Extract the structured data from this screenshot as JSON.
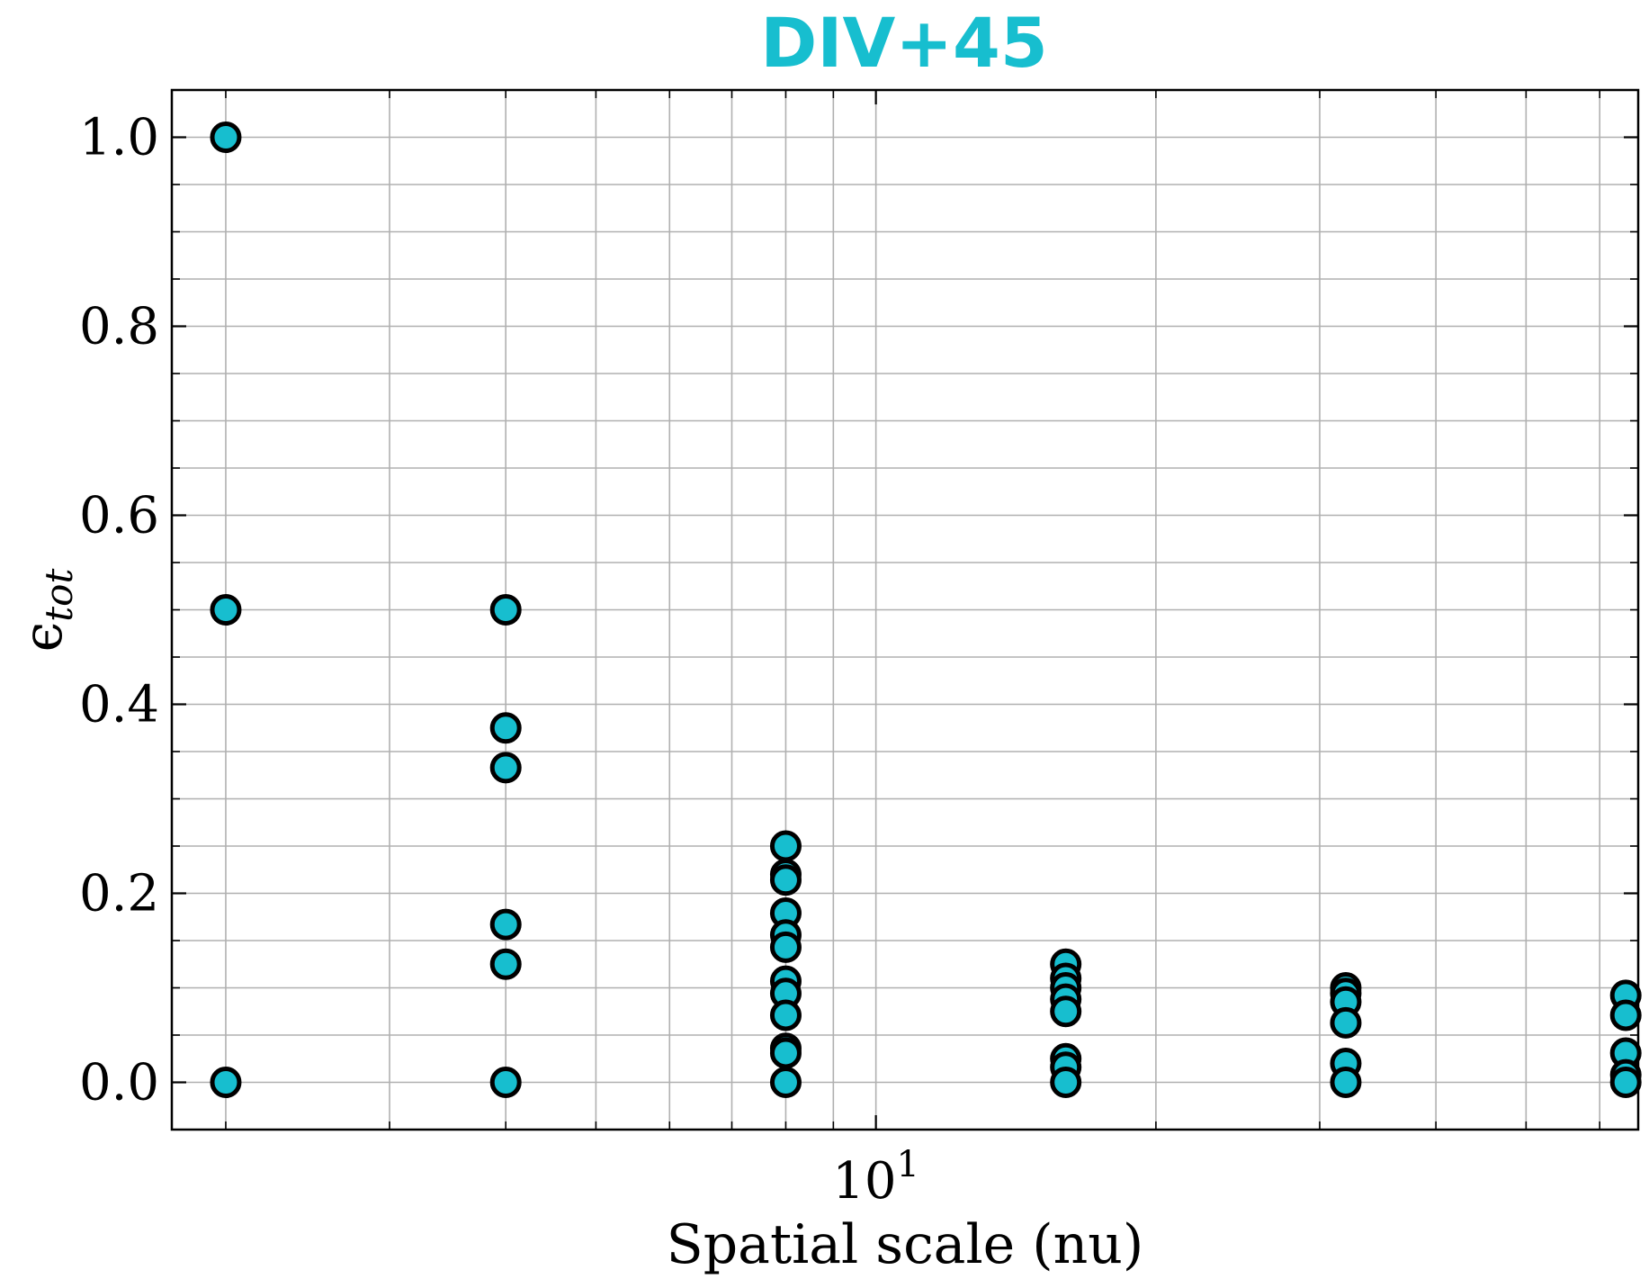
{
  "chart_data": {
    "type": "scatter",
    "title": "DIV+45",
    "title_color": "#17becf",
    "xlabel": "Spatial scale (nu)",
    "ylabel": "ϵ",
    "ylabel_sub": "tot",
    "x_scale": "log",
    "xlim": [
      1.75,
      66
    ],
    "ylim": [
      -0.05,
      1.05
    ],
    "x_tick_labels": [
      {
        "base": "10",
        "exp": "1",
        "value": 10
      }
    ],
    "y_ticks": [
      0.0,
      0.2,
      0.4,
      0.6,
      0.8,
      1.0
    ],
    "y_tick_labels": [
      "0.0",
      "0.2",
      "0.4",
      "0.6",
      "0.8",
      "1.0"
    ],
    "grid": true,
    "marker_color": "#17becf",
    "marker_edge_color": "#000000",
    "series": [
      {
        "points": [
          {
            "x": 2,
            "y": 1.0
          },
          {
            "x": 2,
            "y": 0.5
          },
          {
            "x": 2,
            "y": 0.0
          },
          {
            "x": 4,
            "y": 0.5
          },
          {
            "x": 4,
            "y": 0.375
          },
          {
            "x": 4,
            "y": 0.333
          },
          {
            "x": 4,
            "y": 0.167
          },
          {
            "x": 4,
            "y": 0.125
          },
          {
            "x": 4,
            "y": 0.0
          },
          {
            "x": 8,
            "y": 0.25
          },
          {
            "x": 8,
            "y": 0.22
          },
          {
            "x": 8,
            "y": 0.214
          },
          {
            "x": 8,
            "y": 0.179
          },
          {
            "x": 8,
            "y": 0.156
          },
          {
            "x": 8,
            "y": 0.143
          },
          {
            "x": 8,
            "y": 0.107
          },
          {
            "x": 8,
            "y": 0.094
          },
          {
            "x": 8,
            "y": 0.071
          },
          {
            "x": 8,
            "y": 0.036
          },
          {
            "x": 8,
            "y": 0.031
          },
          {
            "x": 8,
            "y": 0.0
          },
          {
            "x": 16,
            "y": 0.125
          },
          {
            "x": 16,
            "y": 0.11
          },
          {
            "x": 16,
            "y": 0.1
          },
          {
            "x": 16,
            "y": 0.088
          },
          {
            "x": 16,
            "y": 0.075
          },
          {
            "x": 16,
            "y": 0.025
          },
          {
            "x": 16,
            "y": 0.016
          },
          {
            "x": 16,
            "y": 0.0
          },
          {
            "x": 32,
            "y": 0.1
          },
          {
            "x": 32,
            "y": 0.094
          },
          {
            "x": 32,
            "y": 0.085
          },
          {
            "x": 32,
            "y": 0.063
          },
          {
            "x": 32,
            "y": 0.02
          },
          {
            "x": 32,
            "y": 0.0
          },
          {
            "x": 64,
            "y": 0.092
          },
          {
            "x": 64,
            "y": 0.071
          },
          {
            "x": 64,
            "y": 0.031
          },
          {
            "x": 64,
            "y": 0.008
          },
          {
            "x": 64,
            "y": 0.0
          }
        ]
      }
    ]
  }
}
